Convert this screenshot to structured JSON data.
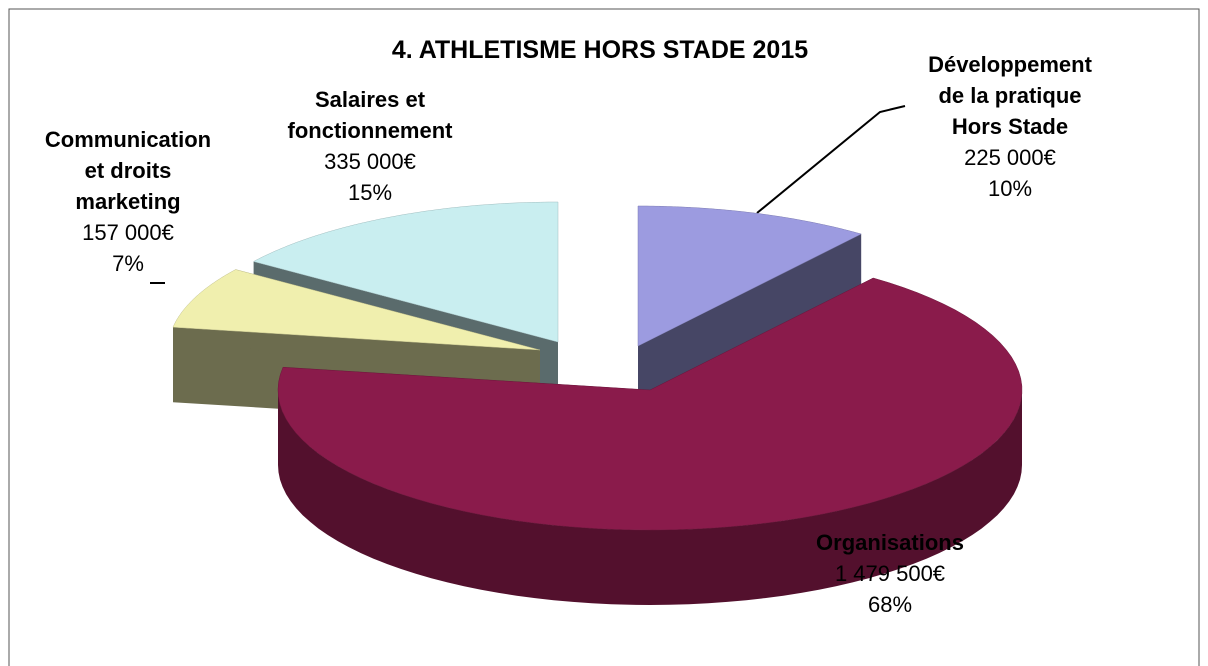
{
  "chart_data": {
    "type": "pie3d",
    "title": "4. ATHLETISME HORS STADE 2015",
    "categories": [
      "Développement\nde la pratique\nHors Stade",
      "Organisations",
      "Communication\net droits\nmarketing",
      "Salaires et\nfonctionnement"
    ],
    "values": [
      225000,
      1479500,
      157000,
      335000
    ],
    "value_labels": [
      "225 000€",
      "1 479 500€",
      "157 000€",
      "335 000€"
    ],
    "percent_labels": [
      "10%",
      "68%",
      "7%",
      "15%"
    ],
    "colors": [
      "#9c9be0",
      "#8a1b4b",
      "#f0efae",
      "#c9eef0"
    ]
  }
}
